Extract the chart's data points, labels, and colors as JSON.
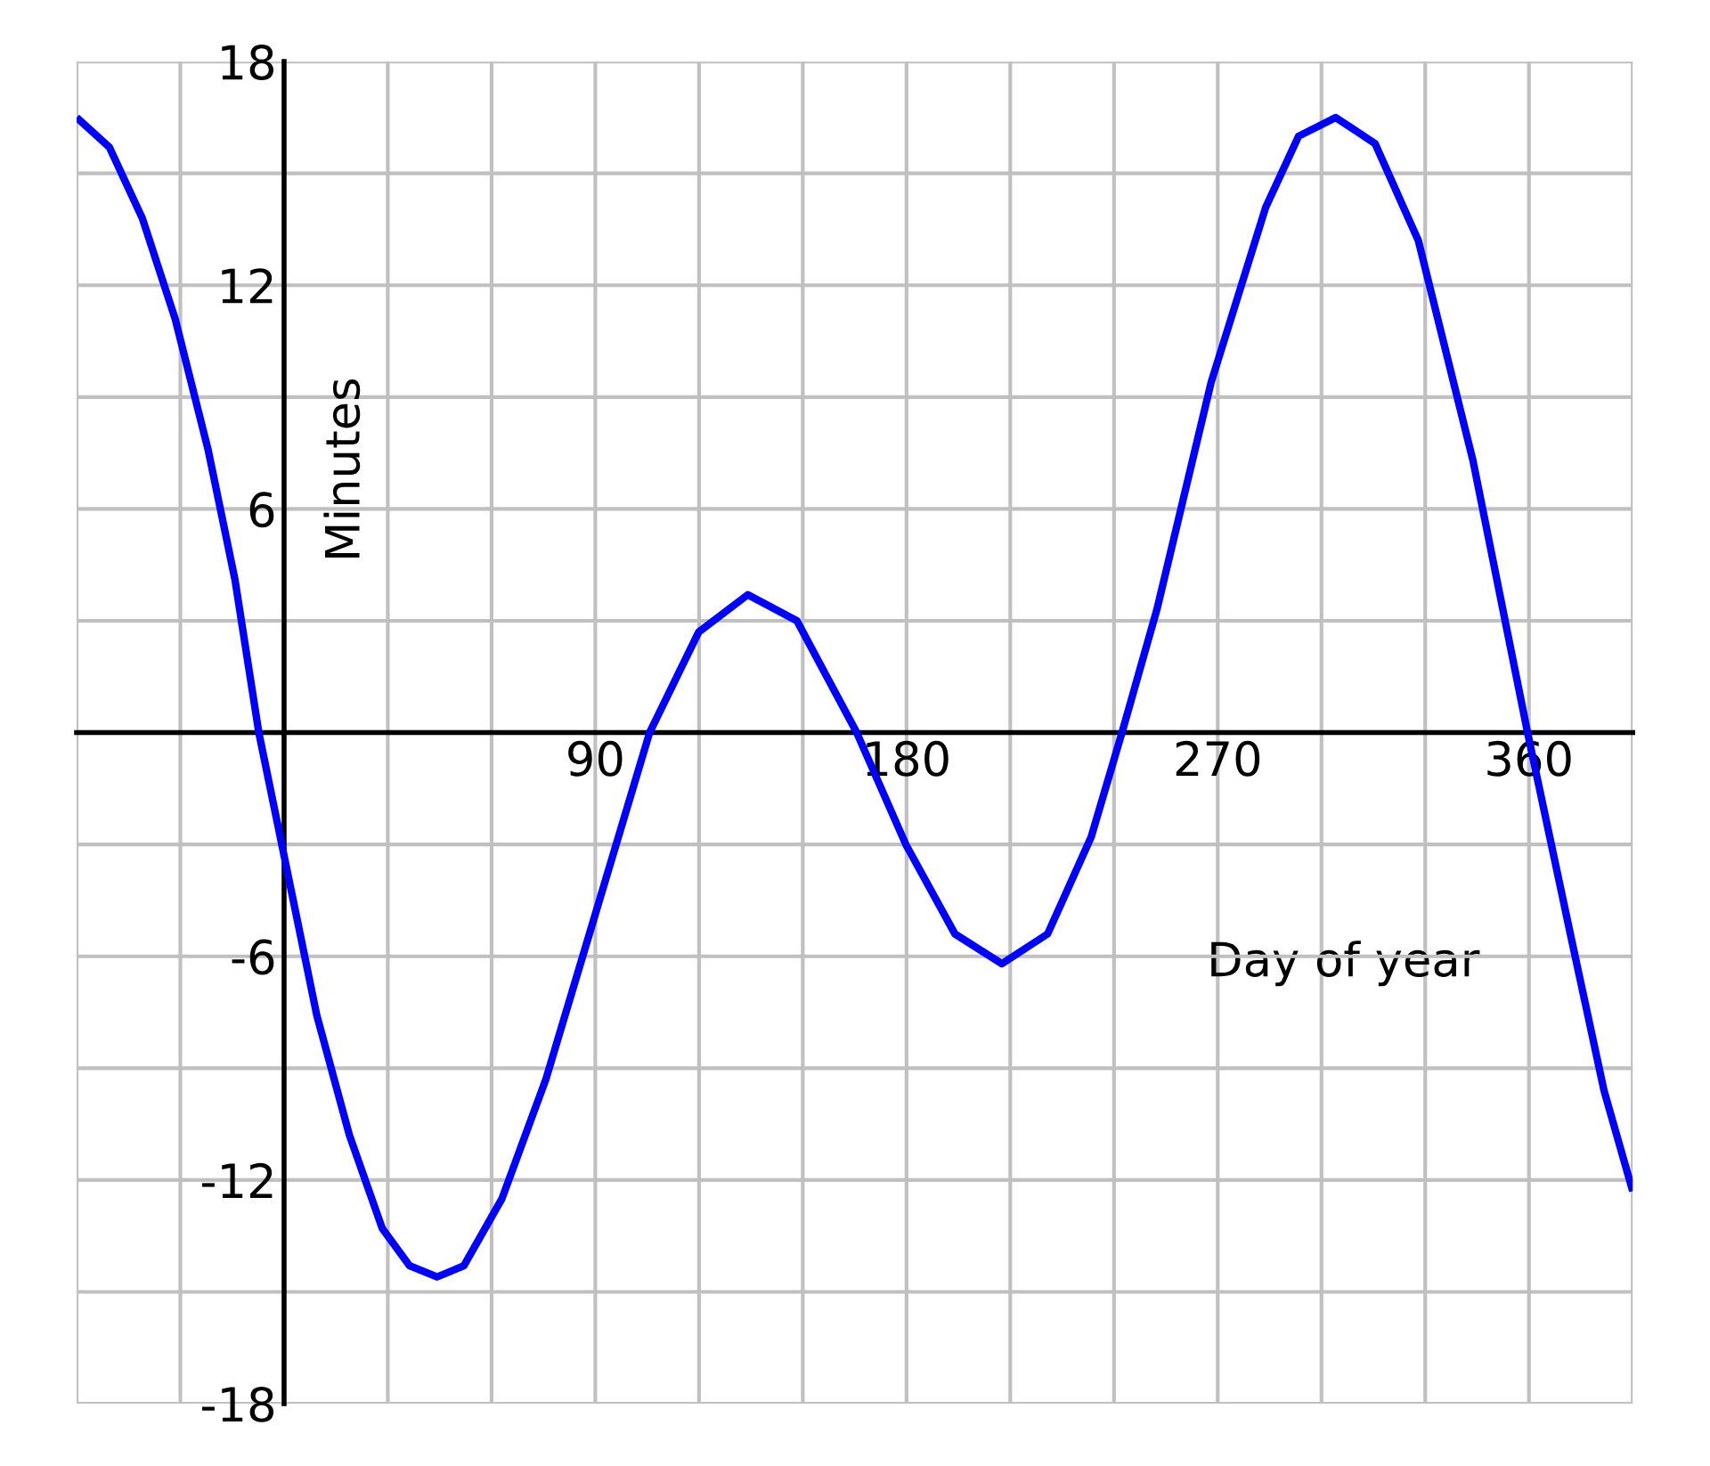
{
  "chart_data": {
    "type": "line",
    "xlabel": "Day of year",
    "ylabel": "Minutes",
    "x": [
      -60,
      -50.5,
      -41,
      -31.5,
      -22,
      -14.2,
      -7.3,
      0,
      9.5,
      18.9,
      28.4,
      36.3,
      44.2,
      52,
      63,
      75.7,
      89.9,
      105.7,
      119.9,
      134.1,
      148.3,
      165.6,
      179.8,
      194,
      207.6,
      220.8,
      233.4,
      242.3,
      252.4,
      268.1,
      283.9,
      293.4,
      304.1,
      315.5,
      328,
      343.8,
      359.6,
      372.2,
      381.7,
      390
    ],
    "series": [
      {
        "color": "#0000ff",
        "values": [
          16.5,
          15.7,
          13.8,
          11.1,
          7.6,
          4.1,
          0,
          -3.3,
          -7.6,
          -10.8,
          -13.3,
          -14.3,
          -14.6,
          -14.3,
          -12.5,
          -9.3,
          -4.9,
          0,
          2.7,
          3.7,
          3.0,
          0,
          -3.0,
          -5.4,
          -6.2,
          -5.4,
          -2.8,
          0,
          3.3,
          9.4,
          14.1,
          16.0,
          16.5,
          15.8,
          13.2,
          7.3,
          0,
          -5.5,
          -9.6,
          -12.3
        ]
      }
    ],
    "xlim": [
      -60,
      390
    ],
    "ylim": [
      -18,
      18
    ],
    "xticks": [
      {
        "value": -60,
        "label": null
      },
      {
        "value": -30,
        "label": null
      },
      {
        "value": 0,
        "label": null
      },
      {
        "value": 30,
        "label": null
      },
      {
        "value": 60,
        "label": null
      },
      90,
      {
        "value": 120,
        "label": null
      },
      {
        "value": 150,
        "label": null
      },
      180,
      {
        "value": 210,
        "label": null
      },
      {
        "value": 240,
        "label": null
      },
      270,
      {
        "value": 300,
        "label": null
      },
      {
        "value": 330,
        "label": null
      },
      360,
      {
        "value": 390,
        "label": null
      }
    ],
    "yticks": [
      -18,
      {
        "value": -15,
        "label": null
      },
      -12,
      {
        "value": -9,
        "label": null
      },
      -6,
      {
        "value": -3,
        "label": null
      },
      {
        "value": 0,
        "label": null
      },
      {
        "value": 3,
        "label": null
      },
      6,
      {
        "value": 9,
        "label": null
      },
      12,
      {
        "value": 15,
        "label": null
      },
      18
    ],
    "grid": true
  }
}
